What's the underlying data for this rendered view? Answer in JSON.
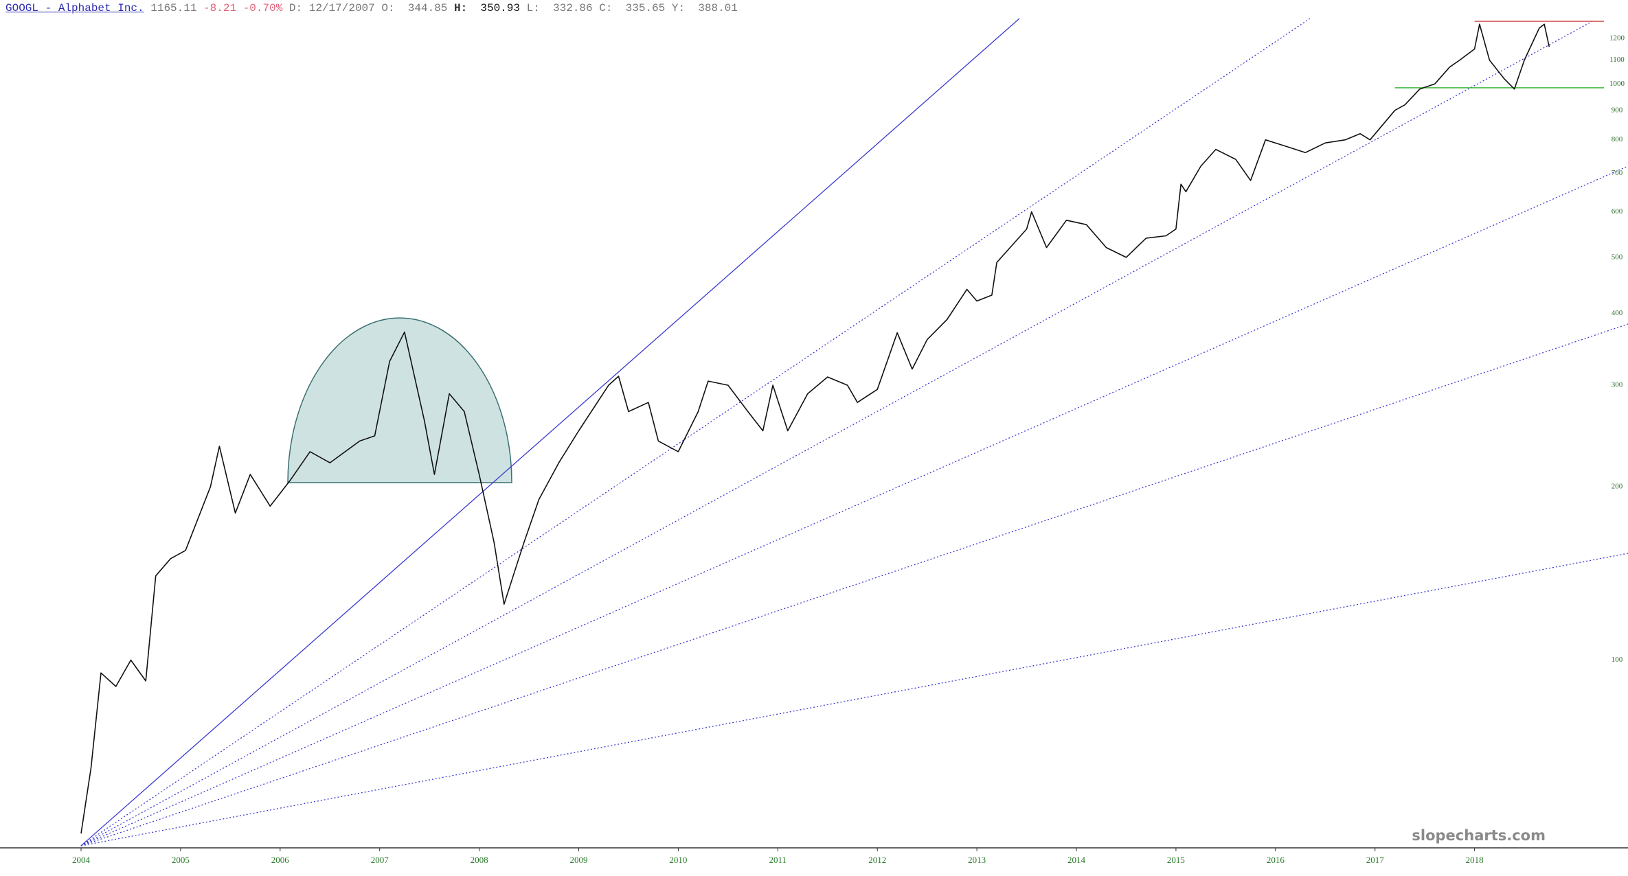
{
  "header": {
    "symbol": "GOOGL - Alphabet Inc.",
    "last": "1165.11",
    "change": "-8.21",
    "change_pct": "-0.70%",
    "date_label": "D:",
    "date": "12/17/2007",
    "open_label": "O:",
    "open": "344.85",
    "high_label": "H:",
    "high": "350.93",
    "low_label": "L:",
    "low": "332.86",
    "close_label": "C:",
    "close": "335.65",
    "y_label": "Y:",
    "y_value": "388.01"
  },
  "chart_data": {
    "type": "line",
    "log_scale": true,
    "watermark": "slopecharts.com",
    "xlim": [
      2004,
      2019.3
    ],
    "xticks": [
      2004,
      2005,
      2006,
      2007,
      2008,
      2009,
      2010,
      2011,
      2012,
      2013,
      2014,
      2015,
      2016,
      2017,
      2018
    ],
    "ylim": [
      47.6,
      1299
    ],
    "yticks": [
      100,
      200,
      300,
      400,
      500,
      600,
      700,
      800,
      900,
      1000,
      1100,
      1200
    ],
    "series": [
      {
        "name": "GOOGL",
        "color": "#111111",
        "x": [
          2004.0,
          2004.1,
          2004.2,
          2004.35,
          2004.5,
          2004.65,
          2004.75,
          2004.9,
          2005.05,
          2005.3,
          2005.39,
          2005.55,
          2005.7,
          2005.9,
          2006.1,
          2006.3,
          2006.5,
          2006.8,
          2006.95,
          2007.1,
          2007.25,
          2007.45,
          2007.55,
          2007.7,
          2007.85,
          2008.0,
          2008.15,
          2008.25,
          2008.45,
          2008.6,
          2008.8,
          2009.0,
          2009.3,
          2009.4,
          2009.5,
          2009.7,
          2009.8,
          2010.0,
          2010.2,
          2010.3,
          2010.5,
          2010.7,
          2010.85,
          2010.95,
          2011.1,
          2011.3,
          2011.5,
          2011.7,
          2011.8,
          2012.0,
          2012.2,
          2012.35,
          2012.5,
          2012.7,
          2012.9,
          2013.0,
          2013.15,
          2013.2,
          2013.5,
          2013.55,
          2013.7,
          2013.9,
          2014.1,
          2014.3,
          2014.5,
          2014.7,
          2014.9,
          2015.0,
          2015.05,
          2015.1,
          2015.25,
          2015.4,
          2015.6,
          2015.75,
          2015.9,
          2016.1,
          2016.3,
          2016.5,
          2016.7,
          2016.85,
          2016.95,
          2017.2,
          2017.3,
          2017.45,
          2017.6,
          2017.75,
          2017.85,
          2018.0,
          2018.05,
          2018.15,
          2018.3,
          2018.4,
          2018.5,
          2018.65,
          2018.7,
          2018.75
        ],
        "values": [
          50,
          65,
          95,
          90,
          100,
          92,
          140,
          150,
          155,
          200,
          235,
          180,
          210,
          185,
          205,
          230,
          220,
          240,
          245,
          330,
          371,
          260,
          210,
          290,
          270,
          210,
          160,
          125,
          160,
          190,
          220,
          250,
          300,
          311,
          270,
          280,
          240,
          230,
          270,
          305,
          300,
          270,
          250,
          300,
          250,
          290,
          310,
          300,
          280,
          295,
          370,
          320,
          360,
          390,
          440,
          420,
          430,
          490,
          560,
          600,
          520,
          580,
          570,
          520,
          500,
          540,
          545,
          560,
          670,
          650,
          720,
          770,
          740,
          680,
          800,
          780,
          760,
          790,
          800,
          820,
          800,
          900,
          920,
          980,
          1000,
          1070,
          1100,
          1150,
          1270,
          1100,
          1020,
          980,
          1100,
          1250,
          1270,
          1160
        ]
      }
    ],
    "hlines": [
      {
        "value": 1285,
        "color": "#d04a4a",
        "x0": 2018
      },
      {
        "value": 985,
        "color": "#3cb83c",
        "x0": 2017.2
      }
    ]
  }
}
